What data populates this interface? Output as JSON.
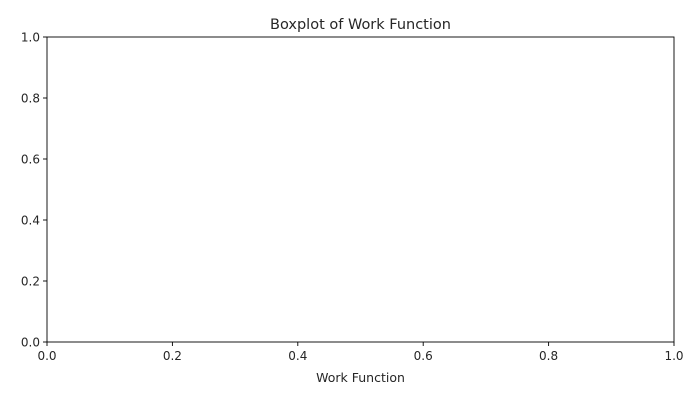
{
  "chart_data": {
    "type": "box",
    "title": "Boxplot of Work Function",
    "xlabel": "Work Function",
    "ylabel": "",
    "xlim": [
      0.0,
      1.0
    ],
    "ylim": [
      0.0,
      1.0
    ],
    "xticks": [
      "0.0",
      "0.2",
      "0.4",
      "0.6",
      "0.8",
      "1.0"
    ],
    "yticks": [
      "0.0",
      "0.2",
      "0.4",
      "0.6",
      "0.8",
      "1.0"
    ],
    "series": [],
    "grid": false
  }
}
